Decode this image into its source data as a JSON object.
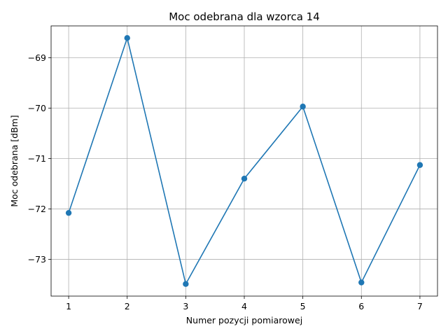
{
  "chart_data": {
    "type": "line",
    "title": "Moc odebrana dla wzorca 14",
    "xlabel": "Numer pozycji pomiarowej",
    "ylabel": "Moc odebrana [dBm]",
    "x": [
      1,
      2,
      3,
      4,
      5,
      6,
      7
    ],
    "series": [
      {
        "values": [
          -72.08,
          -68.61,
          -73.49,
          -71.4,
          -69.97,
          -73.46,
          -71.13
        ],
        "color": "#1f77b4",
        "marker": "circle"
      }
    ],
    "xticks": [
      "1",
      "2",
      "3",
      "4",
      "5",
      "6",
      "7"
    ],
    "yticks": [
      -73,
      -72,
      -71,
      -70,
      -69
    ],
    "ytick_labels": [
      "−73",
      "−72",
      "−71",
      "−70",
      "−69"
    ],
    "xlim": [
      0.7,
      7.3
    ],
    "ylim": [
      -73.73,
      -68.37
    ],
    "grid": true,
    "axes_color": "#000000",
    "grid_color": "#b0b0b0"
  }
}
